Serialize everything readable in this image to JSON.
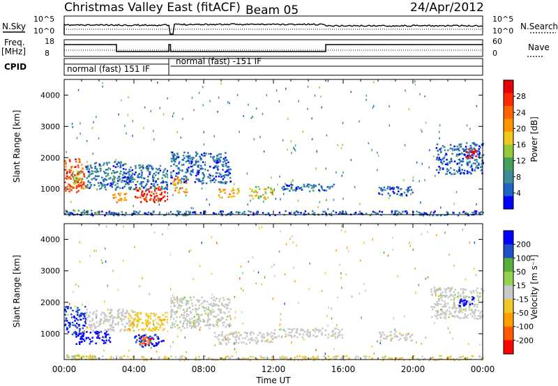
{
  "header": {
    "title": "Christmas Valley East (fitACF)",
    "beam": "Beam 05",
    "date": "24/Apr/2012"
  },
  "strip_labels": {
    "nsky": "N.Sky",
    "nsearch": "N.Search",
    "freq_line1": "Freq.",
    "freq_line2": "[MHz]",
    "nave": "Nave",
    "cpid": "CPID",
    "nsky_ticks": [
      "10^5",
      "10^0"
    ],
    "nsearch_ticks": [
      "10^5",
      "10^0"
    ],
    "freq_ticks": [
      "18",
      "8"
    ],
    "nave_ticks": [
      "60",
      "0"
    ]
  },
  "cpid_segments": [
    {
      "label": "normal (fast) 151 IF",
      "start": "00:00",
      "end": "06:00"
    },
    {
      "label": "normal (fast) -151 IF",
      "start": "06:00",
      "end": "24:00"
    }
  ],
  "x_axis": {
    "label": "Time UT",
    "ticks": [
      "00:00",
      "04:00",
      "08:00",
      "12:00",
      "16:00",
      "20:00",
      "00:00"
    ]
  },
  "colors": {
    "power_scale": [
      "#0000ff",
      "#1e64c8",
      "#3c8c96",
      "#46a05a",
      "#96c83c",
      "#f0c81e",
      "#ff9600",
      "#ff6400",
      "#ff2800",
      "#e60000"
    ],
    "velocity_scale": [
      "#0000ff",
      "#1e50c8",
      "#5aaf3c",
      "#96d250",
      "#c8c8c8",
      "#f0c828",
      "#ffa000",
      "#ff5a00",
      "#ff0000"
    ]
  },
  "chart_data": [
    {
      "type": "heatmap",
      "title": "Power",
      "ylabel": "Slant Range [km]",
      "xlabel": "Time UT",
      "ylim": [
        180,
        4500
      ],
      "xlim": [
        0,
        24
      ],
      "yticks": [
        "1000",
        "2000",
        "3000",
        "4000"
      ],
      "colorbar": {
        "label": "Power [dB]",
        "ticks": [
          "4",
          "8",
          "12",
          "16",
          "20",
          "24",
          "28"
        ],
        "range": [
          0,
          30
        ]
      },
      "regions": [
        {
          "t0": 0.0,
          "t1": 1.2,
          "r0": 900,
          "r1": 2000,
          "value": 24
        },
        {
          "t0": 0.4,
          "t1": 1.0,
          "r0": 1100,
          "r1": 1600,
          "value": 14
        },
        {
          "t0": 1.2,
          "t1": 3.8,
          "r0": 1000,
          "r1": 1900,
          "value": 6
        },
        {
          "t0": 2.6,
          "t1": 3.6,
          "r0": 600,
          "r1": 900,
          "value": 20
        },
        {
          "t0": 4.0,
          "t1": 6.0,
          "r0": 600,
          "r1": 1100,
          "value": 26
        },
        {
          "t0": 3.6,
          "t1": 6.0,
          "r0": 1000,
          "r1": 1800,
          "value": 6
        },
        {
          "t0": 0.0,
          "t1": 2.0,
          "r0": 250,
          "r1": 350,
          "value": 12
        },
        {
          "t0": 6.0,
          "t1": 9.5,
          "r0": 1200,
          "r1": 2200,
          "value": 5
        },
        {
          "t0": 6.2,
          "t1": 7.0,
          "r0": 900,
          "r1": 1400,
          "value": 18
        },
        {
          "t0": 8.8,
          "t1": 10.0,
          "r0": 750,
          "r1": 1050,
          "value": 18
        },
        {
          "t0": 10.6,
          "t1": 12.0,
          "r0": 700,
          "r1": 1100,
          "value": 15
        },
        {
          "t0": 12.5,
          "t1": 15.5,
          "r0": 950,
          "r1": 1200,
          "value": 6
        },
        {
          "t0": 18.0,
          "t1": 20.0,
          "r0": 800,
          "r1": 1100,
          "value": 5
        },
        {
          "t0": 21.3,
          "t1": 24.0,
          "r0": 1500,
          "r1": 2500,
          "value": 5
        },
        {
          "t0": 23.0,
          "t1": 23.6,
          "r0": 2000,
          "r1": 2300,
          "value": 28
        },
        {
          "t0": 0.0,
          "t1": 24.0,
          "r0": 180,
          "r1": 320,
          "value": 5
        }
      ]
    },
    {
      "type": "heatmap",
      "title": "Velocity",
      "ylabel": "Slant Range [km]",
      "xlabel": "Time UT",
      "ylim": [
        180,
        4500
      ],
      "xlim": [
        0,
        24
      ],
      "yticks": [
        "1000",
        "2000",
        "3000",
        "4000"
      ],
      "colorbar": {
        "label": "Velocity [m s⁻¹]",
        "ticks": [
          "200",
          "100",
          "50",
          "15",
          "-15",
          "-50",
          "-100",
          "-200"
        ],
        "range": [
          -250,
          250
        ]
      },
      "regions": [
        {
          "t0": 0.0,
          "t1": 1.2,
          "r0": 1000,
          "r1": 1900,
          "value": 180
        },
        {
          "t0": 0.6,
          "t1": 2.6,
          "r0": 700,
          "r1": 1100,
          "value": 220
        },
        {
          "t0": 1.2,
          "t1": 4.0,
          "r0": 1100,
          "r1": 1800,
          "value": 0
        },
        {
          "t0": 4.0,
          "t1": 6.0,
          "r0": 600,
          "r1": 1000,
          "value": 200
        },
        {
          "t0": 4.2,
          "t1": 5.0,
          "r0": 700,
          "r1": 950,
          "value": -180
        },
        {
          "t0": 3.6,
          "t1": 6.0,
          "r0": 1100,
          "r1": 1700,
          "value": -60
        },
        {
          "t0": 0.0,
          "t1": 2.0,
          "r0": 250,
          "r1": 350,
          "value": 40
        },
        {
          "t0": 6.0,
          "t1": 9.5,
          "r0": 1200,
          "r1": 2200,
          "value": 5
        },
        {
          "t0": 8.5,
          "t1": 12.0,
          "r0": 700,
          "r1": 1100,
          "value": 0
        },
        {
          "t0": 12.0,
          "t1": 16.0,
          "r0": 900,
          "r1": 1200,
          "value": 0
        },
        {
          "t0": 18.0,
          "t1": 20.0,
          "r0": 800,
          "r1": 1100,
          "value": 0
        },
        {
          "t0": 21.0,
          "t1": 24.0,
          "r0": 1500,
          "r1": 2500,
          "value": 5
        },
        {
          "t0": 22.6,
          "t1": 23.6,
          "r0": 1900,
          "r1": 2200,
          "value": 220
        },
        {
          "t0": 0.0,
          "t1": 24.0,
          "r0": 180,
          "r1": 320,
          "value": -30
        }
      ]
    }
  ]
}
